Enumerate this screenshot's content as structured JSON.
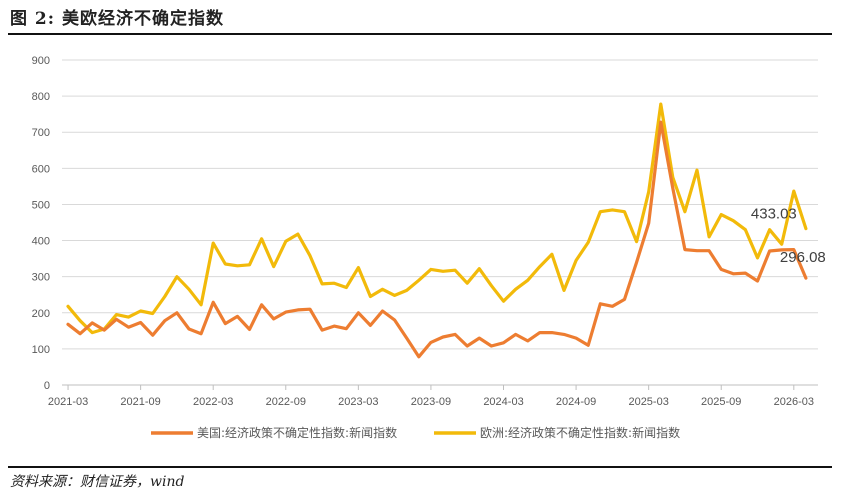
{
  "figure": {
    "title": "图 2:   美欧经济不确定指数",
    "source": "资料来源：财信证券，wind"
  },
  "colors": {
    "us": "#ED7D31",
    "eu": "#F2BA0A",
    "grid": "#D9D9D9",
    "axis": "#BFBFBF"
  },
  "chart_data": {
    "type": "line",
    "ylim": [
      0,
      900
    ],
    "yticks": [
      0,
      100,
      200,
      300,
      400,
      500,
      600,
      700,
      800,
      900
    ],
    "x": [
      "2021-03",
      "2021-04",
      "2021-05",
      "2021-06",
      "2021-07",
      "2021-08",
      "2021-09",
      "2021-10",
      "2021-11",
      "2021-12",
      "2022-01",
      "2022-02",
      "2022-03",
      "2022-04",
      "2022-05",
      "2022-06",
      "2022-07",
      "2022-08",
      "2022-09",
      "2022-10",
      "2022-11",
      "2022-12",
      "2023-01",
      "2023-02",
      "2023-03",
      "2023-04",
      "2023-05",
      "2023-06",
      "2023-07",
      "2023-08",
      "2023-09",
      "2023-10",
      "2023-11",
      "2023-12",
      "2024-01",
      "2024-02",
      "2024-03",
      "2024-04",
      "2024-05",
      "2024-06",
      "2024-07",
      "2024-08",
      "2024-09",
      "2024-10",
      "2024-11",
      "2024-12",
      "2025-01",
      "2025-02",
      "2025-03",
      "2025-04",
      "2025-05",
      "2025-06",
      "2025-07",
      "2025-08",
      "2025-09",
      "2025-10",
      "2025-11",
      "2025-12",
      "2026-01",
      "2026-02",
      "2026-03",
      "2026-04"
    ],
    "xtick_labels": [
      "2021-03",
      "2021-09",
      "2022-03",
      "2022-09",
      "2023-03",
      "2023-09",
      "2024-03",
      "2024-09",
      "2025-03",
      "2025-09",
      "2026-03"
    ],
    "series": [
      {
        "name": "美国:经济政策不确定性指数:新闻指数",
        "values": [
          168,
          142,
          172,
          152,
          182,
          160,
          173,
          138,
          178,
          200,
          155,
          142,
          229,
          170,
          190,
          154,
          222,
          183,
          202,
          208,
          210,
          152,
          163,
          156,
          200,
          165,
          205,
          180,
          130,
          78,
          118,
          133,
          140,
          108,
          130,
          108,
          117,
          140,
          122,
          145,
          145,
          140,
          130,
          110,
          225,
          218,
          237,
          340,
          448,
          728,
          545,
          375,
          372,
          372,
          320,
          308,
          310,
          288,
          371,
          374,
          375,
          296.08
        ],
        "end_label": "296.08"
      },
      {
        "name": "欧洲:经济政策不确定性指数:新闻指数",
        "values": [
          218,
          178,
          145,
          155,
          195,
          188,
          205,
          198,
          245,
          300,
          265,
          222,
          393,
          335,
          330,
          333,
          405,
          328,
          398,
          418,
          358,
          280,
          282,
          270,
          325,
          245,
          265,
          248,
          262,
          290,
          320,
          315,
          318,
          282,
          322,
          275,
          232,
          265,
          290,
          328,
          362,
          262,
          345,
          395,
          480,
          485,
          480,
          397,
          535,
          778,
          575,
          480,
          595,
          410,
          472,
          455,
          430,
          352,
          430,
          390,
          537,
          433.03
        ],
        "end_label": "433.03"
      }
    ]
  }
}
